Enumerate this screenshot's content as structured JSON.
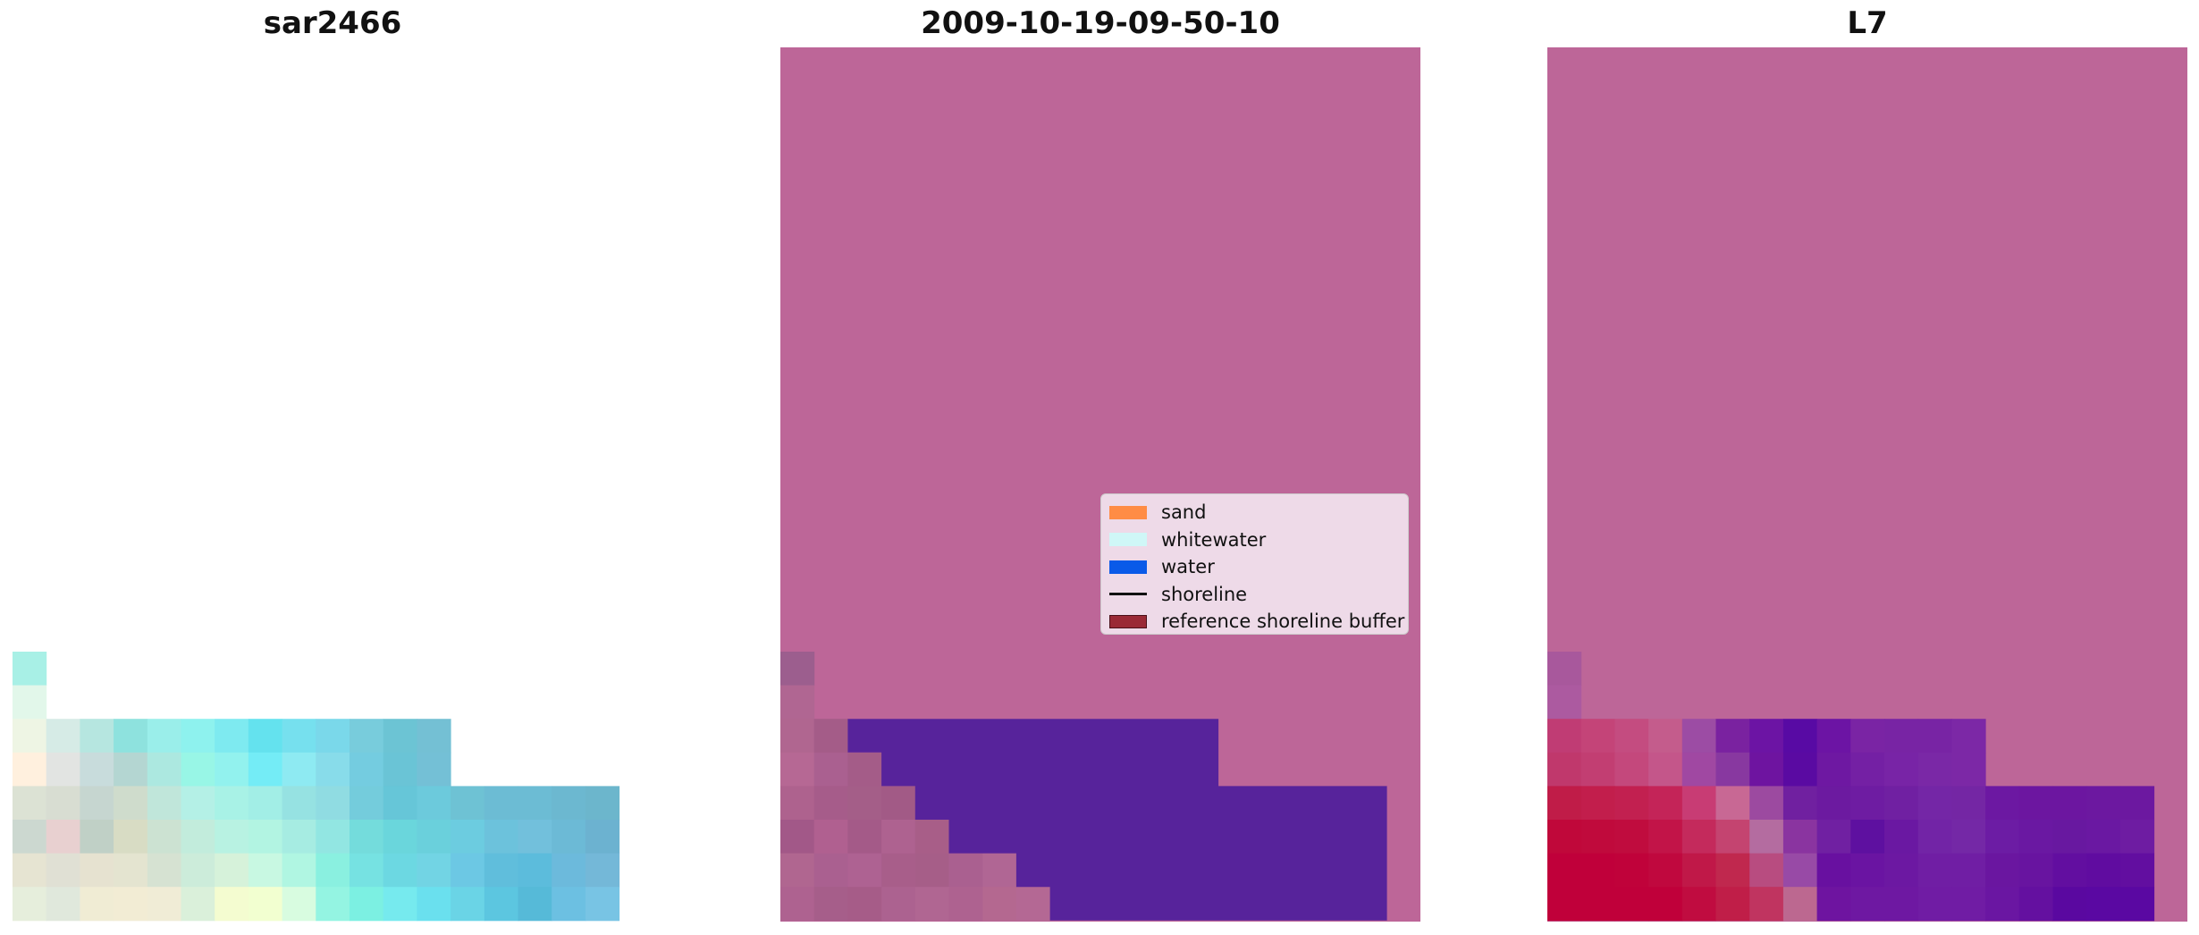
{
  "panels": [
    {
      "title": "sar2466"
    },
    {
      "title": "2009-10-19-09-50-10"
    },
    {
      "title": "L7"
    }
  ],
  "colors": {
    "background_overlay": "#bd6698",
    "water_overlay": "#57239b",
    "shore_overlay": "#a55888"
  },
  "legend": {
    "items": [
      {
        "label": "sand",
        "color": "#ff8c45",
        "kind": "patch"
      },
      {
        "label": "whitewater",
        "color": "#cff7f7",
        "kind": "patch"
      },
      {
        "label": "water",
        "color": "#0a5ae8",
        "kind": "patch"
      },
      {
        "label": "shoreline",
        "color": "#111111",
        "kind": "line"
      },
      {
        "label": "reference shoreline buffer",
        "color": "#9a2a36",
        "kind": "patch"
      }
    ]
  }
}
